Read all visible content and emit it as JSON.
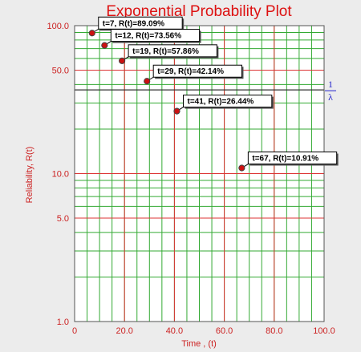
{
  "chart_data": {
    "type": "scatter",
    "title": "Exponential Probability Plot",
    "xlabel": "Time , (t)",
    "ylabel": "Reliability, R(t)",
    "x_scale": "linear",
    "y_scale": "log",
    "xlim": [
      0,
      100
    ],
    "ylim": [
      1,
      100
    ],
    "x_ticks": [
      "0",
      "20.0",
      "40.0",
      "60.0",
      "80.0",
      "100.0"
    ],
    "y_ticks": [
      "1.0",
      "5.0",
      "10.0",
      "50.0",
      "100.0"
    ],
    "grid": true,
    "reference_line": {
      "y": 36.79,
      "label_top": "1",
      "label_bottom": "λ"
    },
    "points": [
      {
        "x": 7,
        "y": 89.09,
        "label": "t=7, R(t)=89.09%"
      },
      {
        "x": 12,
        "y": 73.56,
        "label": "t=12, R(t)=73.56%"
      },
      {
        "x": 19,
        "y": 57.86,
        "label": "t=19, R(t)=57.86%"
      },
      {
        "x": 29,
        "y": 42.14,
        "label": "t=29, R(t)=42.14%"
      },
      {
        "x": 41,
        "y": 26.44,
        "label": "t=41, R(t)=26.44%"
      },
      {
        "x": 67,
        "y": 10.91,
        "label": "t=67, R(t)=10.91%"
      }
    ],
    "colors": {
      "background": "#ececec",
      "plot_background": "#ffffff",
      "minor_grid": "#33aa33",
      "major_grid": "#dd3333",
      "axis_text": "#cc2222",
      "point_fill": "#cc1111",
      "reference_line": "#333333",
      "reference_label": "#2222cc"
    }
  }
}
